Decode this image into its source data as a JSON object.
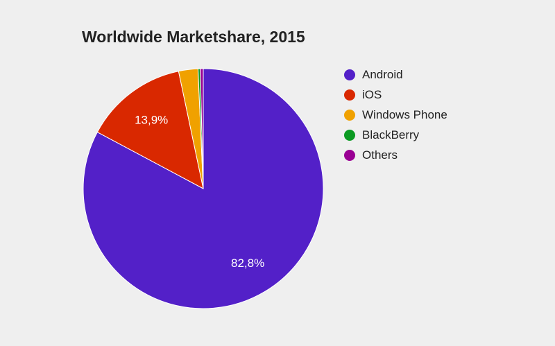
{
  "chart_data": {
    "type": "pie",
    "title": "Worldwide Marketshare, 2015",
    "slices": [
      {
        "name": "Android",
        "value": 82.8,
        "label": "82,8%",
        "color": "#5320c8"
      },
      {
        "name": "iOS",
        "value": 13.9,
        "label": "13,9%",
        "color": "#d92800"
      },
      {
        "name": "Windows Phone",
        "value": 2.6,
        "label": "",
        "color": "#f0a100"
      },
      {
        "name": "BlackBerry",
        "value": 0.3,
        "label": "",
        "color": "#0b9a22"
      },
      {
        "name": "Others",
        "value": 0.4,
        "label": "",
        "color": "#9a0094"
      }
    ],
    "legend_position": "right",
    "start_angle": "top, clockwise"
  }
}
